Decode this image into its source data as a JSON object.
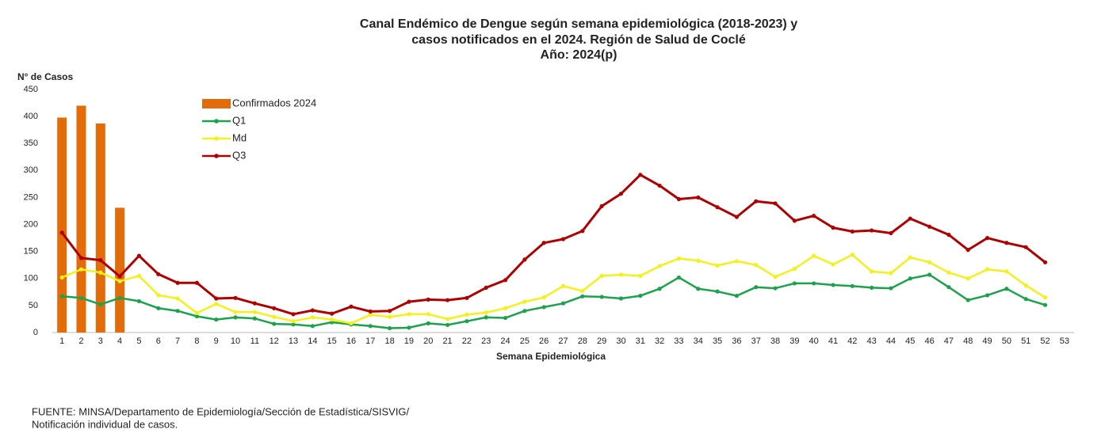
{
  "chart_data": {
    "type": "bar-line",
    "title": [
      "Canal Endémico de Dengue según semana epidemiológica (2018-2023) y",
      "casos notificados en el 2024. Región de Salud de Coclé",
      "Año: 2024(p)"
    ],
    "y_label": "N° de Casos",
    "x_label": "Semana Epidemiológica",
    "source": [
      "FUENTE: MINSA/Departamento de Epidemiología/Sección de Estadística/SISVIG/",
      "Notificación individual de casos."
    ],
    "legend": "top-left",
    "grid": false,
    "categories": [
      "1",
      "2",
      "3",
      "4",
      "5",
      "6",
      "7",
      "8",
      "9",
      "10",
      "11",
      "12",
      "13",
      "14",
      "15",
      "16",
      "17",
      "18",
      "19",
      "20",
      "21",
      "22",
      "23",
      "24",
      "25",
      "26",
      "27",
      "28",
      "29",
      "30",
      "31",
      "32",
      "33",
      "34",
      "35",
      "36",
      "37",
      "38",
      "39",
      "40",
      "41",
      "42",
      "43",
      "44",
      "45",
      "46",
      "47",
      "48",
      "49",
      "50",
      "51",
      "52",
      "53"
    ],
    "ylim": [
      0,
      450
    ],
    "yticks": [
      0,
      50,
      100,
      150,
      200,
      250,
      300,
      350,
      400,
      450
    ],
    "series": [
      {
        "name": "Confirmados 2024",
        "kind": "bar",
        "color": "#e36c0a",
        "values": [
          398,
          420,
          387,
          231,
          null,
          null,
          null,
          null,
          null,
          null,
          null,
          null,
          null,
          null,
          null,
          null,
          null,
          null,
          null,
          null,
          null,
          null,
          null,
          null,
          null,
          null,
          null,
          null,
          null,
          null,
          null,
          null,
          null,
          null,
          null,
          null,
          null,
          null,
          null,
          null,
          null,
          null,
          null,
          null,
          null,
          null,
          null,
          null,
          null,
          null,
          null,
          null,
          null
        ]
      },
      {
        "name": "Q1",
        "kind": "line",
        "color": "#1aa34a",
        "values": [
          67,
          64,
          52,
          64,
          58,
          45,
          40,
          30,
          24,
          28,
          26,
          16,
          15,
          12,
          19,
          15,
          12,
          8,
          9,
          17,
          14,
          21,
          28,
          27,
          40,
          47,
          54,
          67,
          66,
          63,
          68,
          81,
          102,
          81,
          76,
          68,
          84,
          82,
          91,
          91,
          88,
          86,
          83,
          82,
          100,
          107,
          84,
          60,
          69,
          81,
          62,
          51,
          null
        ]
      },
      {
        "name": "Md",
        "kind": "line",
        "color": "#f2f21a",
        "values": [
          102,
          117,
          111,
          95,
          105,
          69,
          63,
          36,
          53,
          38,
          38,
          29,
          21,
          28,
          24,
          17,
          33,
          29,
          34,
          34,
          25,
          33,
          37,
          45,
          57,
          65,
          86,
          77,
          105,
          107,
          105,
          123,
          137,
          133,
          124,
          132,
          125,
          103,
          118,
          142,
          126,
          144,
          113,
          110,
          139,
          130,
          111,
          100,
          117,
          113,
          87,
          65,
          null
        ]
      },
      {
        "name": "Q3",
        "kind": "line",
        "color": "#b00000",
        "values": [
          185,
          138,
          134,
          104,
          142,
          108,
          92,
          92,
          63,
          64,
          54,
          45,
          34,
          41,
          35,
          48,
          39,
          40,
          57,
          61,
          60,
          64,
          83,
          97,
          135,
          166,
          173,
          188,
          234,
          257,
          292,
          272,
          247,
          250,
          232,
          214,
          243,
          239,
          207,
          216,
          194,
          187,
          189,
          184,
          211,
          196,
          181,
          153,
          175,
          166,
          158,
          130,
          null
        ]
      }
    ]
  }
}
